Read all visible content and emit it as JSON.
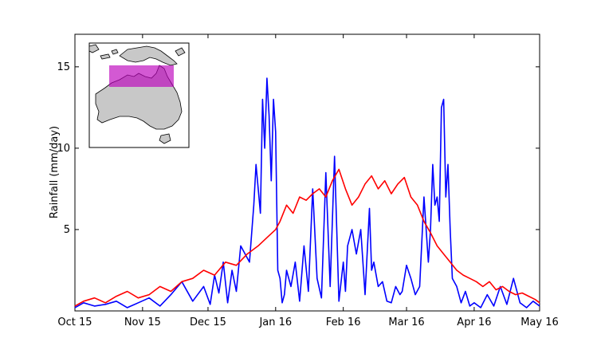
{
  "chart_data": {
    "type": "line",
    "title": "",
    "xlabel": "",
    "ylabel": "Rainfall (mm/day)",
    "x_tick_labels": [
      "Oct 15",
      "Nov 15",
      "Dec 15",
      "Jan 16",
      "Feb 16",
      "Mar 16",
      "Apr 16",
      "May 16"
    ],
    "x_tick_dates": [
      "2015-10-01",
      "2015-11-01",
      "2015-12-01",
      "2016-01-01",
      "2016-02-01",
      "2016-03-01",
      "2016-04-01",
      "2016-05-01"
    ],
    "y_ticks": [
      5,
      10,
      15
    ],
    "xlim": [
      "2015-10-01",
      "2016-05-01"
    ],
    "ylim": [
      0,
      17
    ],
    "grid": false,
    "legend": "none",
    "inset": "map of northern Australia with the averaging region highlighted in magenta",
    "series": [
      {
        "color": "#0000ff",
        "x": [
          "2015-10-01",
          "2015-10-05",
          "2015-10-10",
          "2015-10-15",
          "2015-10-20",
          "2015-10-25",
          "2015-10-30",
          "2015-11-04",
          "2015-11-09",
          "2015-11-14",
          "2015-11-19",
          "2015-11-24",
          "2015-11-29",
          "2015-12-02",
          "2015-12-04",
          "2015-12-06",
          "2015-12-08",
          "2015-12-10",
          "2015-12-12",
          "2015-12-14",
          "2015-12-16",
          "2015-12-18",
          "2015-12-20",
          "2015-12-22",
          "2015-12-23",
          "2015-12-25",
          "2015-12-26",
          "2015-12-27",
          "2015-12-28",
          "2015-12-29",
          "2015-12-30",
          "2015-12-31",
          "2016-01-01",
          "2016-01-02",
          "2016-01-03",
          "2016-01-04",
          "2016-01-05",
          "2016-01-06",
          "2016-01-08",
          "2016-01-10",
          "2016-01-12",
          "2016-01-14",
          "2016-01-16",
          "2016-01-18",
          "2016-01-20",
          "2016-01-22",
          "2016-01-24",
          "2016-01-26",
          "2016-01-28",
          "2016-01-30",
          "2016-02-01",
          "2016-02-02",
          "2016-02-03",
          "2016-02-05",
          "2016-02-07",
          "2016-02-09",
          "2016-02-11",
          "2016-02-13",
          "2016-02-14",
          "2016-02-15",
          "2016-02-17",
          "2016-02-19",
          "2016-02-21",
          "2016-02-23",
          "2016-02-25",
          "2016-02-27",
          "2016-02-28",
          "2016-03-01",
          "2016-03-03",
          "2016-03-05",
          "2016-03-07",
          "2016-03-09",
          "2016-03-11",
          "2016-03-12",
          "2016-03-13",
          "2016-03-14",
          "2016-03-15",
          "2016-03-16",
          "2016-03-17",
          "2016-03-18",
          "2016-03-19",
          "2016-03-20",
          "2016-03-21",
          "2016-03-22",
          "2016-03-24",
          "2016-03-26",
          "2016-03-28",
          "2016-03-30",
          "2016-04-01",
          "2016-04-04",
          "2016-04-07",
          "2016-04-10",
          "2016-04-13",
          "2016-04-16",
          "2016-04-19",
          "2016-04-22",
          "2016-04-25",
          "2016-04-28",
          "2016-05-01"
        ],
        "values": [
          0.2,
          0.5,
          0.3,
          0.4,
          0.6,
          0.2,
          0.5,
          0.8,
          0.3,
          1.0,
          1.8,
          0.6,
          1.5,
          0.4,
          2.2,
          1.1,
          3.0,
          0.5,
          2.5,
          1.2,
          4.0,
          3.5,
          3.0,
          6.5,
          9.0,
          6.0,
          13.0,
          10.0,
          14.3,
          12.0,
          8.0,
          13.0,
          11.0,
          2.5,
          2.0,
          0.5,
          1.0,
          2.5,
          1.5,
          3.0,
          0.6,
          4.0,
          1.2,
          7.5,
          2.0,
          0.8,
          8.5,
          1.5,
          9.5,
          0.6,
          3.0,
          1.2,
          4.0,
          5.0,
          3.5,
          5.0,
          1.0,
          6.3,
          2.5,
          3.0,
          1.5,
          1.8,
          0.6,
          0.5,
          1.5,
          1.0,
          1.2,
          2.8,
          2.0,
          1.0,
          1.5,
          7.0,
          3.0,
          5.0,
          9.0,
          6.5,
          7.0,
          5.5,
          12.5,
          13.0,
          7.0,
          9.0,
          5.0,
          2.0,
          1.5,
          0.5,
          1.2,
          0.3,
          0.5,
          0.2,
          1.0,
          0.3,
          1.5,
          0.4,
          2.0,
          0.5,
          0.2,
          0.6,
          0.3
        ]
      },
      {
        "color": "#ff0000",
        "x": [
          "2015-10-01",
          "2015-10-05",
          "2015-10-10",
          "2015-10-15",
          "2015-10-20",
          "2015-10-25",
          "2015-10-30",
          "2015-11-04",
          "2015-11-09",
          "2015-11-14",
          "2015-11-19",
          "2015-11-24",
          "2015-11-29",
          "2015-12-04",
          "2015-12-09",
          "2015-12-14",
          "2015-12-19",
          "2015-12-24",
          "2015-12-28",
          "2016-01-01",
          "2016-01-03",
          "2016-01-06",
          "2016-01-09",
          "2016-01-12",
          "2016-01-15",
          "2016-01-18",
          "2016-01-21",
          "2016-01-24",
          "2016-01-27",
          "2016-01-30",
          "2016-02-02",
          "2016-02-05",
          "2016-02-08",
          "2016-02-11",
          "2016-02-14",
          "2016-02-17",
          "2016-02-20",
          "2016-02-23",
          "2016-02-26",
          "2016-02-29",
          "2016-03-03",
          "2016-03-06",
          "2016-03-09",
          "2016-03-12",
          "2016-03-15",
          "2016-03-18",
          "2016-03-21",
          "2016-03-24",
          "2016-03-27",
          "2016-03-30",
          "2016-04-02",
          "2016-04-05",
          "2016-04-08",
          "2016-04-11",
          "2016-04-14",
          "2016-04-17",
          "2016-04-20",
          "2016-04-23",
          "2016-04-26",
          "2016-04-29",
          "2016-05-01"
        ],
        "values": [
          0.3,
          0.6,
          0.8,
          0.5,
          0.9,
          1.2,
          0.8,
          1.0,
          1.5,
          1.2,
          1.8,
          2.0,
          2.5,
          2.2,
          3.0,
          2.8,
          3.5,
          4.0,
          4.5,
          5.0,
          5.5,
          6.5,
          6.0,
          7.0,
          6.8,
          7.2,
          7.5,
          7.0,
          8.0,
          8.7,
          7.5,
          6.5,
          7.0,
          7.8,
          8.3,
          7.5,
          8.0,
          7.2,
          7.8,
          8.2,
          7.0,
          6.5,
          5.5,
          4.8,
          4.0,
          3.5,
          3.0,
          2.5,
          2.2,
          2.0,
          1.8,
          1.5,
          1.8,
          1.3,
          1.5,
          1.2,
          1.0,
          1.1,
          0.9,
          0.7,
          0.5
        ]
      }
    ]
  }
}
